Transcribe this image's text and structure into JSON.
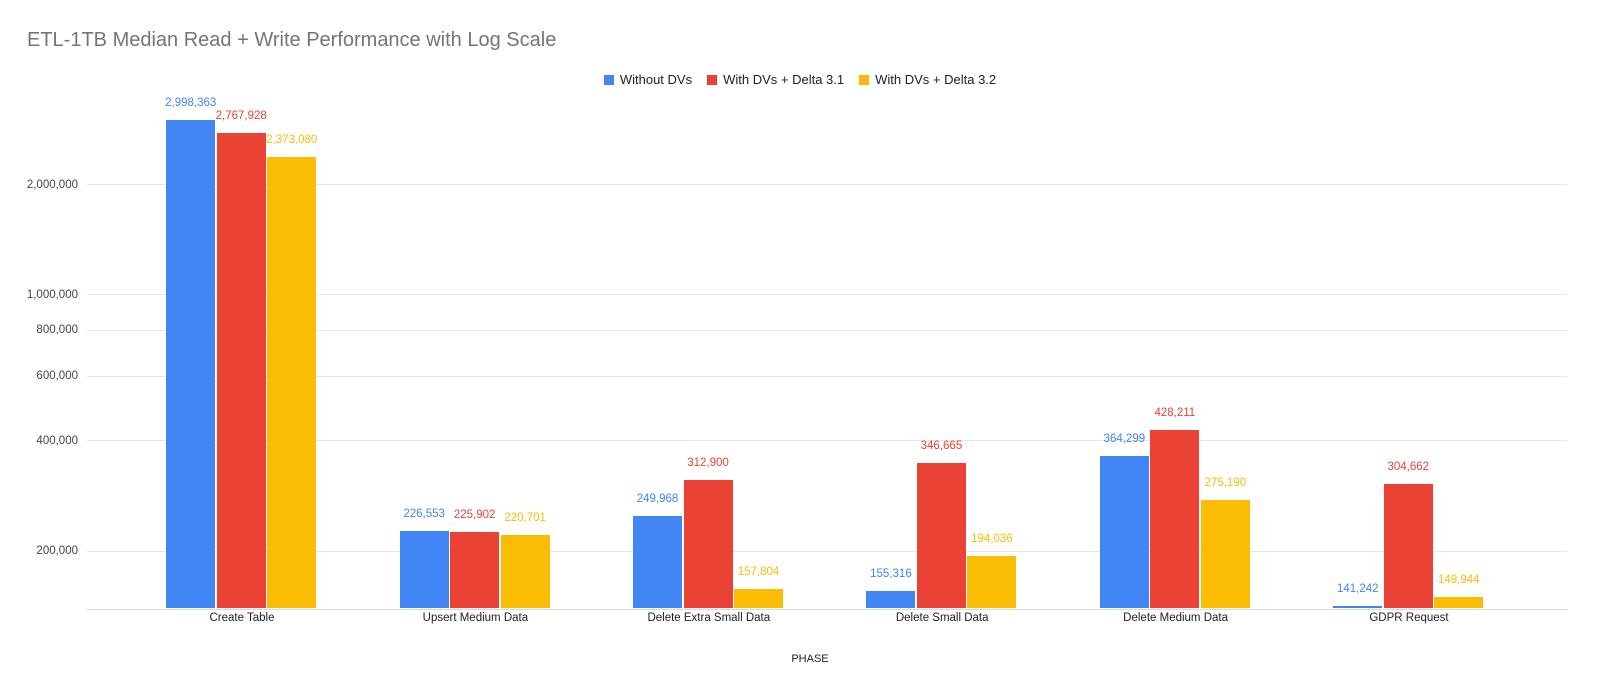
{
  "chart_data": {
    "type": "bar",
    "title": "ETL-1TB Median Read + Write Performance with Log Scale",
    "xlabel": "PHASE",
    "ylabel": "",
    "yscale": "log",
    "ymin": 139400,
    "yticks": [
      200000,
      400000,
      600000,
      800000,
      1000000,
      2000000
    ],
    "grid": true,
    "legend_position": "top",
    "categories": [
      "Create Table",
      "Upsert Medium Data",
      "Delete Extra Small Data",
      "Delete Small Data",
      "Delete Medium Data",
      "GDPR Request"
    ],
    "series": [
      {
        "name": "Without DVs",
        "color": "#4285F4",
        "values": [
          2998363,
          226553,
          249968,
          155316,
          364299,
          141242
        ]
      },
      {
        "name": "With DVs + Delta 3.1",
        "color": "#EA4335",
        "values": [
          2767928,
          225902,
          312900,
          346665,
          428211,
          304662
        ]
      },
      {
        "name": "With DVs + Delta 3.2",
        "color": "#FBBC04",
        "values": [
          2373080,
          220701,
          157804,
          194036,
          275190,
          149944
        ]
      }
    ]
  }
}
